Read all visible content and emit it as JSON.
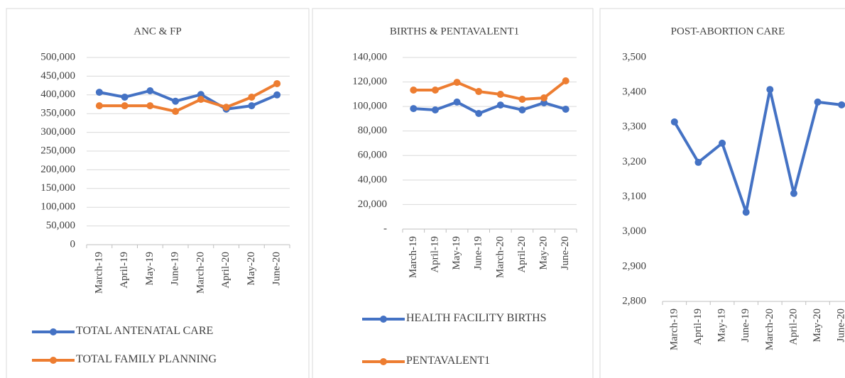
{
  "chart_data": [
    {
      "type": "line",
      "title": "ANC & FP",
      "categories": [
        "March-19",
        "April-19",
        "May-19",
        "June-19",
        "March-20",
        "April-20",
        "May-20",
        "June-20"
      ],
      "series": [
        {
          "name": "TOTAL ANTENATAL CARE",
          "color": "#4472c4",
          "values": [
            407000,
            394000,
            411000,
            383000,
            401000,
            362000,
            371000,
            400000
          ]
        },
        {
          "name": "TOTAL FAMILY PLANNING",
          "color": "#ed7d31",
          "values": [
            371000,
            371000,
            371000,
            356000,
            388000,
            367000,
            394000,
            430000
          ]
        }
      ],
      "ylim": [
        0,
        500000
      ],
      "yticks": [
        0,
        {
          "value": 50000,
          "label": "50,000"
        },
        {
          "value": 100000,
          "label": "100,000"
        },
        {
          "value": 150000,
          "label": "150,000"
        },
        {
          "value": 200000,
          "label": "200,000"
        },
        {
          "value": 250000,
          "label": "250,000"
        },
        {
          "value": 300000,
          "label": "300,000"
        },
        {
          "value": 350000,
          "label": "350,000"
        },
        {
          "value": 400000,
          "label": "400,000"
        },
        {
          "value": 450000,
          "label": "450,000"
        },
        {
          "value": 500000,
          "label": "500,000"
        }
      ],
      "grid": true,
      "legend": "bottom"
    },
    {
      "type": "line",
      "title": "BIRTHS & PENTAVALENT1",
      "categories": [
        "March-19",
        "April-19",
        "May-19",
        "June-19",
        "March-20",
        "April-20",
        "May-20",
        "June-20"
      ],
      "series": [
        {
          "name": "HEALTH FACILITY BIRTHS",
          "color": "#4472c4",
          "values": [
            98300,
            97200,
            103600,
            94300,
            101200,
            97200,
            103000,
            97800
          ]
        },
        {
          "name": "PENTAVALENT1",
          "color": "#ed7d31",
          "values": [
            113400,
            113400,
            119700,
            112200,
            109900,
            105900,
            107000,
            120900
          ]
        }
      ],
      "ylim": [
        0,
        140000
      ],
      "yticks": [
        {
          "value": 0,
          "label": "-"
        },
        {
          "value": 20000,
          "label": "20,000"
        },
        {
          "value": 40000,
          "label": "40,000"
        },
        {
          "value": 60000,
          "label": "60,000"
        },
        {
          "value": 80000,
          "label": "80,000"
        },
        {
          "value": 100000,
          "label": "100,000"
        },
        {
          "value": 120000,
          "label": "120,000"
        },
        {
          "value": 140000,
          "label": "140,000"
        }
      ],
      "grid": true,
      "legend": "bottom"
    },
    {
      "type": "line",
      "title": "POST-ABORTION CARE",
      "categories": [
        "March-19",
        "April-19",
        "May-19",
        "June-19",
        "March-20",
        "April-20",
        "May-20",
        "June-20"
      ],
      "series": [
        {
          "color": "#4472c4",
          "values": [
            3315,
            3199,
            3254,
            3056,
            3408,
            3110,
            3372,
            3364
          ]
        }
      ],
      "ylim": [
        2800,
        3500
      ],
      "yticks": [
        {
          "value": 2800,
          "label": "2,800"
        },
        {
          "value": 2900,
          "label": "2,900"
        },
        {
          "value": 3000,
          "label": "3,000"
        },
        {
          "value": 3100,
          "label": "3,100"
        },
        {
          "value": 3200,
          "label": "3,200"
        },
        {
          "value": 3300,
          "label": "3,300"
        },
        {
          "value": 3400,
          "label": "3,400"
        },
        {
          "value": 3500,
          "label": "3,500"
        }
      ],
      "grid": false
    }
  ]
}
